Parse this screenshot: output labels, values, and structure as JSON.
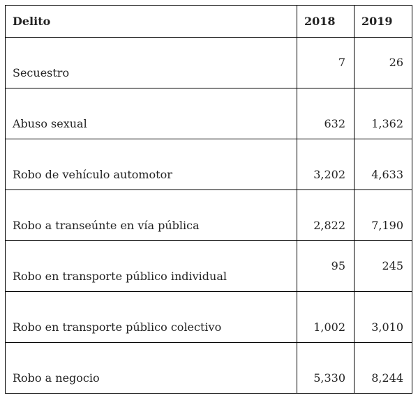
{
  "table": {
    "headers": [
      "Delito",
      "2018",
      "2019"
    ],
    "rows": [
      {
        "delito": "Secuestro",
        "y2018": "7",
        "y2019": "26"
      },
      {
        "delito": "Abuso sexual",
        "y2018": "632",
        "y2019": "1,362"
      },
      {
        "delito": "Robo de vehículo automotor",
        "y2018": "3,202",
        "y2019": "4,633"
      },
      {
        "delito": "Robo a transeúnte en vía pública",
        "y2018": "2,822",
        "y2019": "7,190"
      },
      {
        "delito": "Robo en transporte público individual",
        "y2018": "95",
        "y2019": "245"
      },
      {
        "delito": "Robo en transporte público colectivo",
        "y2018": "1,002",
        "y2019": "3,010"
      },
      {
        "delito": "Robo a negocio",
        "y2018": "5,330",
        "y2019": "8,244"
      }
    ]
  }
}
